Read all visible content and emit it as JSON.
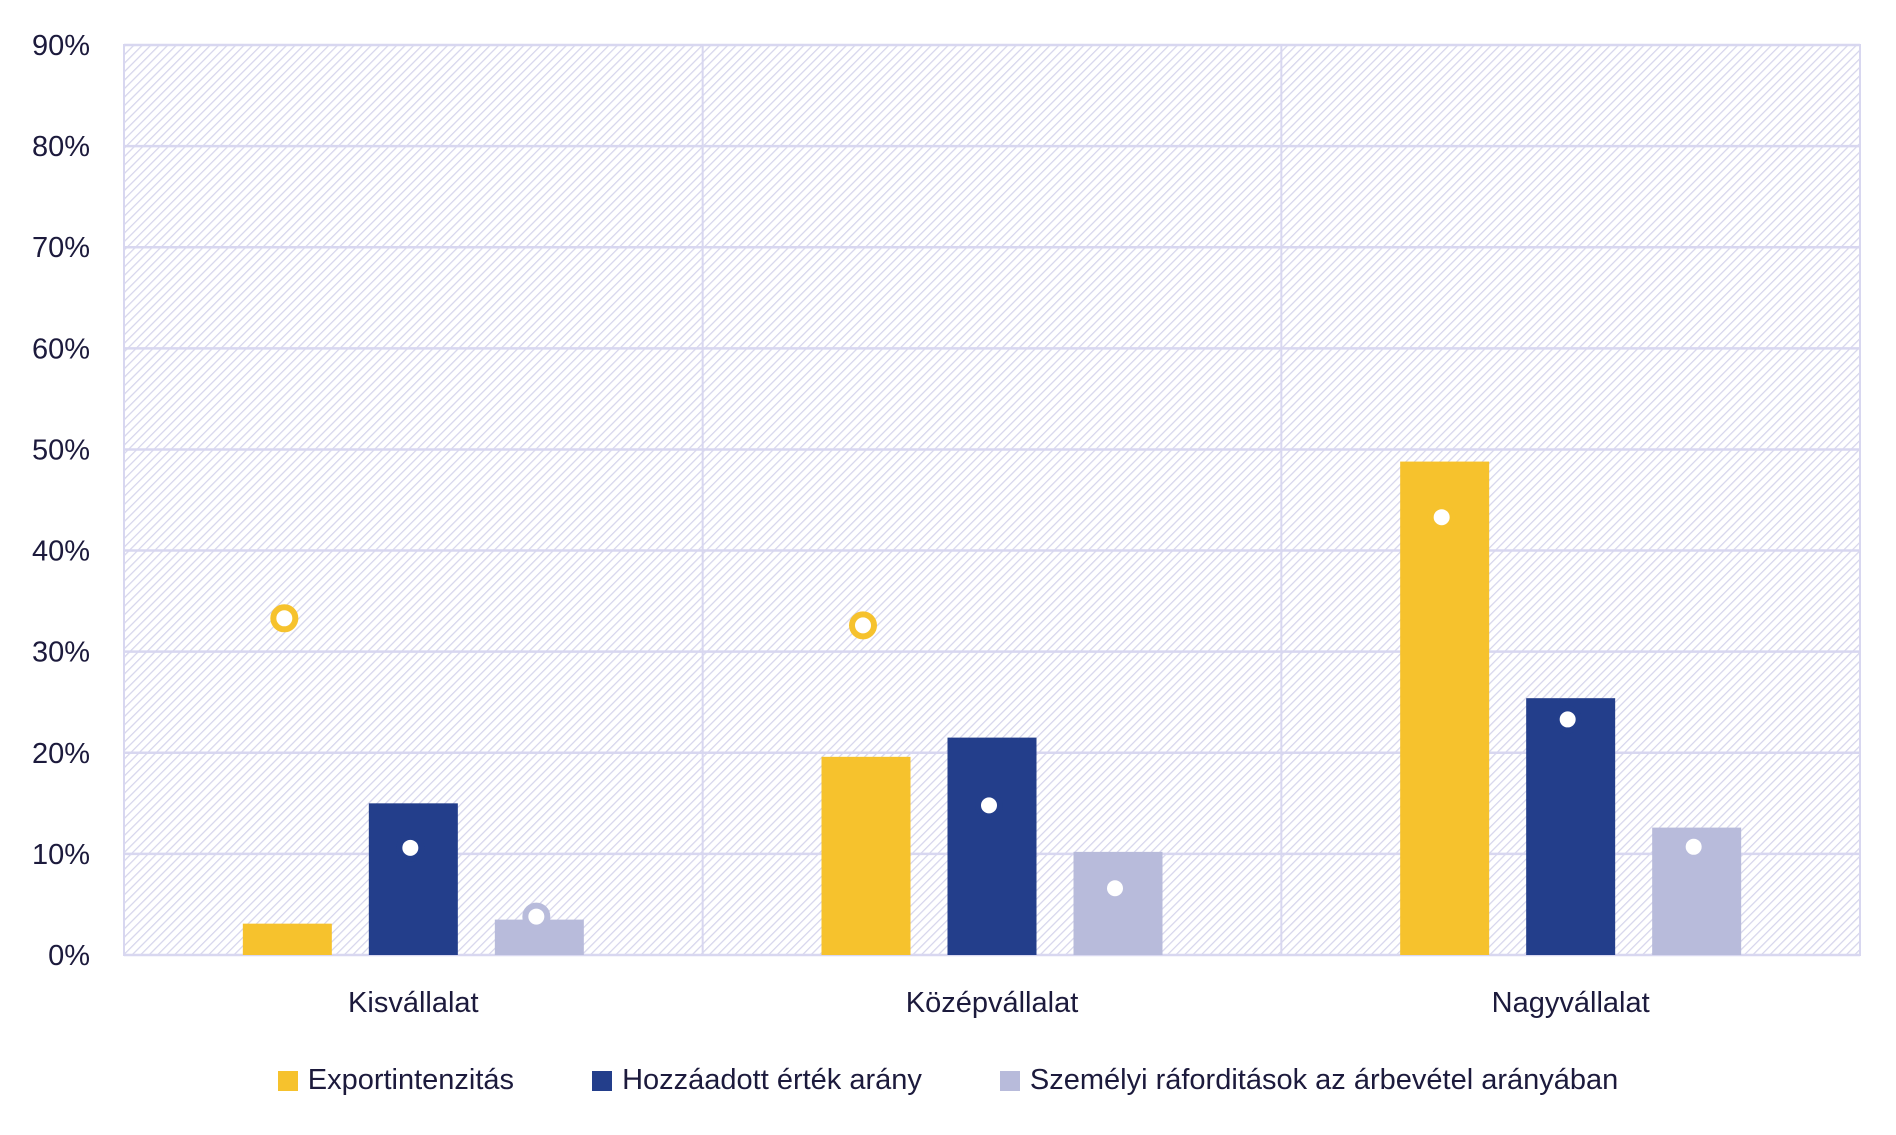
{
  "chart_data": {
    "type": "bar",
    "title": "",
    "xlabel": "",
    "ylabel": "",
    "ylim": [
      0,
      90
    ],
    "yticks": [
      "0%",
      "10%",
      "20%",
      "30%",
      "40%",
      "50%",
      "60%",
      "70%",
      "80%",
      "90%"
    ],
    "grid": true,
    "legend_position": "bottom",
    "categories": [
      "Kisvállalat",
      "Középvállalat",
      "Nagyvállalat"
    ],
    "series": [
      {
        "name": "Exportintenzitás",
        "color": "#F6C22D",
        "values": [
          3.1,
          19.6,
          48.8
        ],
        "markers": [
          33.3,
          32.6,
          43.3
        ]
      },
      {
        "name": "Hozzáadott érték arány",
        "color": "#233E8B",
        "values": [
          15.0,
          21.5,
          25.4
        ],
        "markers": [
          10.6,
          14.8,
          23.3
        ]
      },
      {
        "name": "Személyi ráforditások az árbevétel arányában",
        "color": "#B8BBDB",
        "values": [
          3.5,
          10.2,
          12.6
        ],
        "markers": [
          3.8,
          6.6,
          10.7
        ]
      }
    ]
  }
}
